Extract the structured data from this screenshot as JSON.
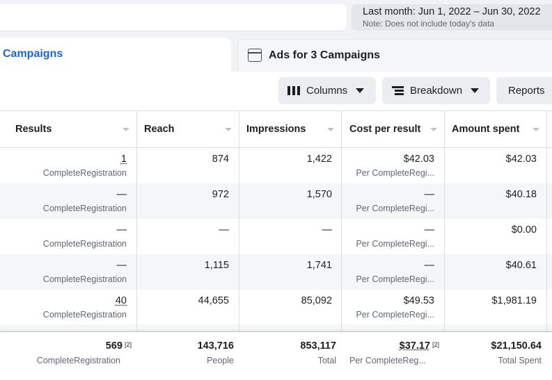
{
  "date_range": {
    "label": "Last month: Jun 1, 2022 – Jun 30, 2022",
    "note": "Note: Does not include today's data"
  },
  "tabs": {
    "campaigns": "Campaigns",
    "ads": "Ads for 3 Campaigns"
  },
  "toolbar": {
    "columns": "Columns",
    "breakdown": "Breakdown",
    "reports": "Reports"
  },
  "columns": [
    "Results",
    "Reach",
    "Impressions",
    "Cost per result",
    "Amount spent"
  ],
  "rows": [
    {
      "results": "1",
      "results_sub": "CompleteRegistration",
      "reach": "874",
      "impressions": "1,422",
      "cpr": "$42.03",
      "cpr_sub": "Per CompleteRegi...",
      "spent": "$42.03"
    },
    {
      "results": "—",
      "results_sub": "CompleteRegistration",
      "reach": "972",
      "impressions": "1,570",
      "cpr": "—",
      "cpr_sub": "Per CompleteRegi...",
      "spent": "$40.18"
    },
    {
      "results": "—",
      "results_sub": "CompleteRegistration",
      "reach": "—",
      "impressions": "—",
      "cpr": "—",
      "cpr_sub": "Per CompleteRegi...",
      "spent": "$0.00"
    },
    {
      "results": "—",
      "results_sub": "CompleteRegistration",
      "reach": "1,115",
      "impressions": "1,741",
      "cpr": "—",
      "cpr_sub": "Per CompleteRegi...",
      "spent": "$40.61"
    },
    {
      "results": "40",
      "results_sub": "CompleteRegistration",
      "reach": "44,655",
      "impressions": "85,092",
      "cpr": "$49.53",
      "cpr_sub": "Per CompleteRegi...",
      "spent": "$1,981.19"
    }
  ],
  "totals": {
    "results": "569",
    "results_note": "[2]",
    "results_sub": "CompleteRegistration",
    "reach": "143,716",
    "reach_sub": "People",
    "impressions": "853,117",
    "impressions_sub": "Total",
    "cpr": "$37.17",
    "cpr_note": "[2]",
    "cpr_sub": "Per CompleteReg...",
    "spent": "$21,150.64",
    "spent_sub": "Total Spent"
  },
  "colors": {
    "accent": "#1b66c9",
    "page_bg": "#f0f2f5",
    "alt_row": "#f5f6f7"
  }
}
